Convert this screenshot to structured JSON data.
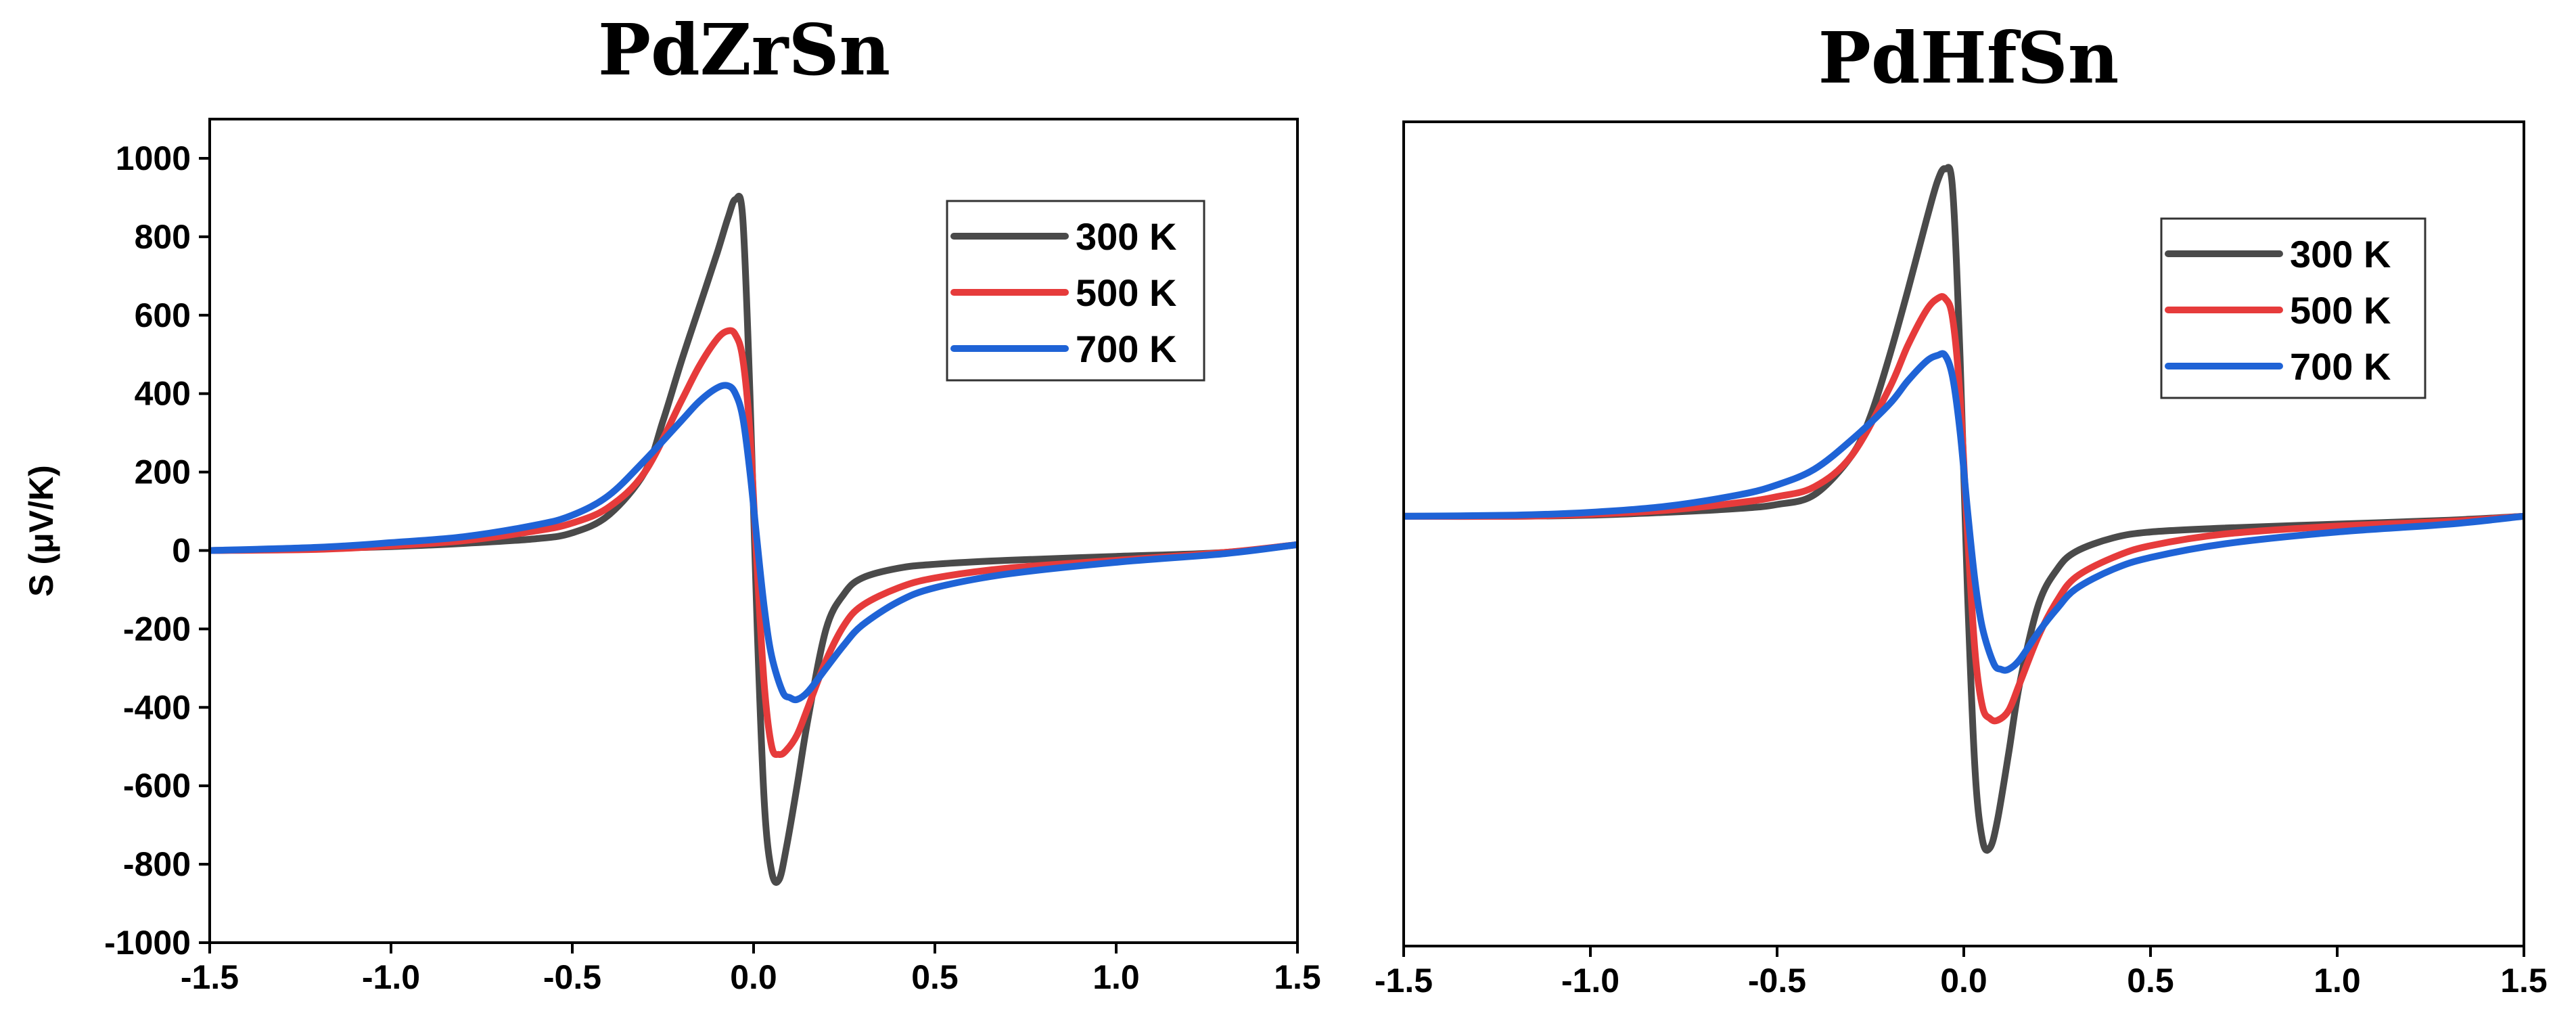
{
  "chart_data": [
    {
      "type": "line",
      "title": "PdZrSn",
      "xlabel": "",
      "ylabel": "S (μV/K)",
      "xlim": [
        -1.5,
        1.5
      ],
      "ylim": [
        -1000,
        1100
      ],
      "xticks": [
        -1.5,
        -1.0,
        -0.5,
        0.0,
        0.5,
        1.0,
        1.5
      ],
      "xtick_labels": [
        "-1.5",
        "-1.0",
        "-0.5",
        "0.0",
        "0.5",
        "1.0",
        "1.5"
      ],
      "yticks": [
        -1000,
        -800,
        -600,
        -400,
        -200,
        0,
        200,
        400,
        600,
        800,
        1000
      ],
      "ytick_labels": [
        "-1000",
        "-800",
        "-600",
        "-400",
        "-200",
        "0",
        "200",
        "400",
        "600",
        "800",
        "1000"
      ],
      "legend_position": "top-right",
      "series": [
        {
          "name": "300 K",
          "color": "#4a4a4a",
          "x": [
            -1.5,
            -1.2,
            -1.0,
            -0.8,
            -0.6,
            -0.5,
            -0.4,
            -0.3,
            -0.25,
            -0.2,
            -0.15,
            -0.1,
            -0.07,
            -0.05,
            -0.03,
            -0.01,
            0.01,
            0.03,
            0.05,
            0.07,
            0.09,
            0.12,
            0.15,
            0.2,
            0.25,
            0.3,
            0.4,
            0.5,
            0.7,
            1.0,
            1.3,
            1.5
          ],
          "y": [
            0,
            5,
            10,
            18,
            30,
            45,
            90,
            200,
            330,
            480,
            620,
            760,
            850,
            895,
            850,
            400,
            -200,
            -650,
            -820,
            -840,
            -760,
            -600,
            -430,
            -200,
            -110,
            -70,
            -45,
            -35,
            -25,
            -15,
            -5,
            15
          ]
        },
        {
          "name": "500 K",
          "color": "#e63b3b",
          "x": [
            -1.5,
            -1.2,
            -1.0,
            -0.8,
            -0.6,
            -0.5,
            -0.4,
            -0.3,
            -0.2,
            -0.15,
            -0.1,
            -0.07,
            -0.05,
            -0.03,
            -0.01,
            0.01,
            0.03,
            0.05,
            0.07,
            0.09,
            0.12,
            0.15,
            0.2,
            0.25,
            0.3,
            0.4,
            0.5,
            0.7,
            1.0,
            1.3,
            1.5
          ],
          "y": [
            0,
            3,
            12,
            25,
            50,
            70,
            110,
            200,
            380,
            470,
            540,
            560,
            550,
            490,
            300,
            -50,
            -350,
            -500,
            -520,
            -510,
            -470,
            -400,
            -280,
            -190,
            -140,
            -95,
            -70,
            -45,
            -25,
            -5,
            15
          ]
        },
        {
          "name": "700 K",
          "color": "#1f63d6",
          "x": [
            -1.5,
            -1.2,
            -1.0,
            -0.8,
            -0.6,
            -0.5,
            -0.4,
            -0.3,
            -0.2,
            -0.15,
            -0.1,
            -0.07,
            -0.05,
            -0.03,
            -0.01,
            0.01,
            0.03,
            0.05,
            0.08,
            0.1,
            0.12,
            0.15,
            0.2,
            0.25,
            0.3,
            0.4,
            0.5,
            0.7,
            1.0,
            1.3,
            1.5
          ],
          "y": [
            0,
            8,
            20,
            35,
            65,
            90,
            140,
            230,
            330,
            380,
            415,
            420,
            400,
            340,
            200,
            20,
            -150,
            -270,
            -360,
            -375,
            -380,
            -360,
            -300,
            -240,
            -190,
            -130,
            -95,
            -60,
            -30,
            -8,
            15
          ]
        }
      ]
    },
    {
      "type": "line",
      "title": "PdHfSn",
      "xlabel": "",
      "ylabel": "",
      "xlim": [
        -1.5,
        1.5
      ],
      "ylim": [
        -1050,
        1050
      ],
      "xticks": [
        -1.5,
        -1.0,
        -0.5,
        0.0,
        0.5,
        1.0,
        1.5
      ],
      "xtick_labels": [
        "-1.5",
        "-1.0",
        "-0.5",
        "0.0",
        "0.5",
        "1.0",
        "1.5"
      ],
      "yticks": [],
      "ytick_labels": [],
      "legend_position": "top-right",
      "series": [
        {
          "name": "300 K",
          "color": "#4a4a4a",
          "x": [
            -1.5,
            -1.2,
            -1.0,
            -0.8,
            -0.6,
            -0.5,
            -0.4,
            -0.3,
            -0.25,
            -0.2,
            -0.15,
            -0.1,
            -0.07,
            -0.05,
            -0.03,
            -0.01,
            0.01,
            0.03,
            0.05,
            0.07,
            0.09,
            0.12,
            0.15,
            0.2,
            0.25,
            0.3,
            0.4,
            0.5,
            0.7,
            1.0,
            1.3,
            1.5
          ],
          "y": [
            45,
            45,
            48,
            55,
            65,
            75,
            100,
            200,
            300,
            450,
            620,
            800,
            900,
            930,
            880,
            450,
            -150,
            -600,
            -780,
            -800,
            -730,
            -560,
            -380,
            -180,
            -90,
            -45,
            -10,
            5,
            15,
            25,
            35,
            45
          ]
        },
        {
          "name": "500 K",
          "color": "#e63b3b",
          "x": [
            -1.5,
            -1.2,
            -1.0,
            -0.8,
            -0.6,
            -0.5,
            -0.4,
            -0.3,
            -0.2,
            -0.15,
            -0.1,
            -0.07,
            -0.05,
            -0.03,
            -0.01,
            0.01,
            0.03,
            0.05,
            0.07,
            0.09,
            0.12,
            0.15,
            0.2,
            0.25,
            0.3,
            0.4,
            0.5,
            0.7,
            1.0,
            1.3,
            1.5
          ],
          "y": [
            45,
            45,
            50,
            60,
            80,
            95,
            120,
            200,
            370,
            480,
            570,
            600,
            600,
            550,
            350,
            0,
            -300,
            -440,
            -470,
            -475,
            -450,
            -380,
            -260,
            -170,
            -110,
            -60,
            -30,
            0,
            20,
            32,
            45
          ]
        },
        {
          "name": "700 K",
          "color": "#1f63d6",
          "x": [
            -1.5,
            -1.2,
            -1.0,
            -0.8,
            -0.6,
            -0.5,
            -0.4,
            -0.3,
            -0.2,
            -0.15,
            -0.1,
            -0.07,
            -0.05,
            -0.03,
            -0.01,
            0.01,
            0.03,
            0.05,
            0.08,
            0.1,
            0.12,
            0.15,
            0.2,
            0.25,
            0.3,
            0.4,
            0.5,
            0.7,
            1.0,
            1.3,
            1.5
          ],
          "y": [
            45,
            48,
            55,
            70,
            100,
            125,
            165,
            240,
            330,
            390,
            440,
            455,
            455,
            400,
            260,
            60,
            -120,
            -240,
            -330,
            -345,
            -345,
            -320,
            -250,
            -190,
            -140,
            -90,
            -60,
            -25,
            5,
            25,
            45
          ]
        }
      ]
    }
  ]
}
